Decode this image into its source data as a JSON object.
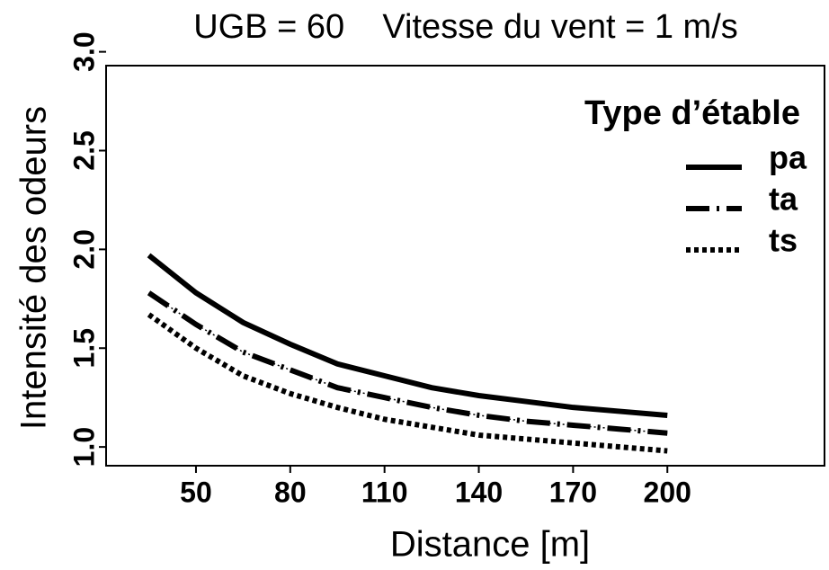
{
  "chart_data": {
    "type": "line",
    "title": "UGB = 60    Vitesse du vent = 1 m/s",
    "xlabel": "Distance [m]",
    "ylabel": "Intensité des odeurs",
    "legend_title": "Type d’étable",
    "legend": "top-right",
    "x": [
      35,
      50,
      65,
      80,
      95,
      110,
      125,
      140,
      155,
      170,
      185,
      200
    ],
    "series": [
      {
        "name": "pa",
        "color": "#000000",
        "dash": "solid",
        "values": [
          1.97,
          1.78,
          1.63,
          1.52,
          1.42,
          1.36,
          1.3,
          1.26,
          1.23,
          1.2,
          1.18,
          1.16
        ]
      },
      {
        "name": "ta",
        "color": "#000000",
        "dash": "dashdot",
        "values": [
          1.78,
          1.62,
          1.48,
          1.39,
          1.3,
          1.25,
          1.2,
          1.16,
          1.13,
          1.11,
          1.09,
          1.07
        ]
      },
      {
        "name": "ts",
        "color": "#000000",
        "dash": "dotted",
        "values": [
          1.67,
          1.5,
          1.36,
          1.27,
          1.2,
          1.14,
          1.1,
          1.06,
          1.04,
          1.02,
          1.0,
          0.98
        ]
      }
    ],
    "xlim": [
      21.4,
      250
    ],
    "ylim": [
      0.905,
      2.93
    ],
    "xticks": [
      50,
      80,
      110,
      140,
      170,
      200
    ],
    "yticks": [
      {
        "value": 1,
        "label": "1.0"
      },
      1.5,
      {
        "value": 2,
        "label": "2.0"
      },
      2.5,
      {
        "value": 3,
        "label": "3.0"
      }
    ],
    "grid": false
  }
}
